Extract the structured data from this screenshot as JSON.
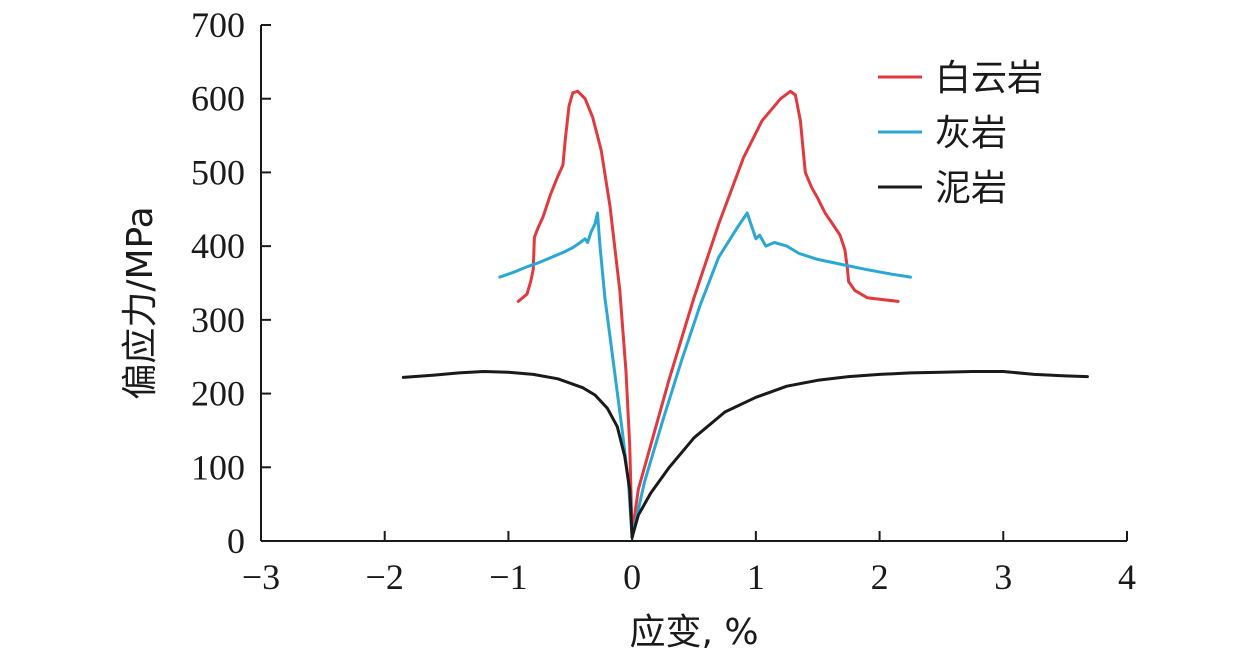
{
  "chart_data": {
    "type": "line",
    "xlabel": "应变, %",
    "ylabel": "偏应力/MPa",
    "xlim": [
      -3,
      4
    ],
    "ylim": [
      0,
      700
    ],
    "xticks": [
      -3,
      -2,
      -1,
      0,
      1,
      2,
      3,
      4
    ],
    "xtick_labels": [
      "−3",
      "−2",
      "−1",
      "0",
      "1",
      "2",
      "3",
      "4"
    ],
    "yticks": [
      0,
      100,
      200,
      300,
      400,
      500,
      600,
      700
    ],
    "ytick_labels": [
      "0",
      "100",
      "200",
      "300",
      "400",
      "500",
      "600",
      "700"
    ],
    "grid": false,
    "legend_position": "top-right",
    "series": [
      {
        "name": "白云岩",
        "color": "#e0393e",
        "x": [
          -0.92,
          -0.85,
          -0.82,
          -0.8,
          -0.79,
          -0.76,
          -0.72,
          -0.66,
          -0.6,
          -0.56,
          -0.54,
          -0.51,
          -0.48,
          -0.44,
          -0.38,
          -0.32,
          -0.25,
          -0.18,
          -0.1,
          -0.05,
          -0.02,
          0
        ],
        "y": [
          325,
          335,
          352,
          368,
          412,
          425,
          440,
          470,
          495,
          510,
          545,
          590,
          608,
          610,
          600,
          575,
          530,
          455,
          340,
          230,
          130,
          10
        ],
        "x2": [
          0,
          0.05,
          0.15,
          0.3,
          0.5,
          0.7,
          0.9,
          1.05,
          1.2,
          1.28,
          1.32,
          1.36,
          1.4,
          1.45,
          1.5,
          1.56,
          1.62,
          1.68,
          1.72,
          1.74,
          1.75,
          1.8,
          1.9,
          2.0,
          2.15
        ],
        "y2": [
          10,
          70,
          130,
          220,
          330,
          430,
          520,
          570,
          600,
          610,
          605,
          570,
          500,
          480,
          465,
          445,
          430,
          415,
          395,
          370,
          352,
          340,
          330,
          328,
          325
        ]
      },
      {
        "name": "灰岩",
        "color": "#2ba7d4",
        "x": [
          -1.07,
          -0.95,
          -0.85,
          -0.75,
          -0.65,
          -0.55,
          -0.48,
          -0.42,
          -0.38,
          -0.36,
          -0.33,
          -0.3,
          -0.28,
          -0.26,
          -0.22,
          -0.15,
          -0.08,
          -0.03,
          0
        ],
        "y": [
          358,
          365,
          372,
          378,
          385,
          392,
          398,
          405,
          410,
          405,
          420,
          430,
          445,
          400,
          330,
          240,
          150,
          80,
          5
        ],
        "x2": [
          0,
          0.1,
          0.25,
          0.4,
          0.55,
          0.7,
          0.85,
          0.93,
          0.96,
          1.0,
          1.03,
          1.08,
          1.15,
          1.25,
          1.35,
          1.5,
          1.7,
          1.9,
          2.1,
          2.25
        ],
        "y2": [
          5,
          80,
          165,
          245,
          320,
          385,
          425,
          445,
          430,
          410,
          415,
          400,
          405,
          400,
          390,
          382,
          375,
          368,
          362,
          358
        ]
      },
      {
        "name": "泥岩",
        "color": "#1a1a1a",
        "x": [
          -1.85,
          -1.6,
          -1.4,
          -1.2,
          -1.0,
          -0.8,
          -0.6,
          -0.4,
          -0.3,
          -0.2,
          -0.12,
          -0.06,
          -0.02,
          0
        ],
        "y": [
          222,
          225,
          228,
          230,
          229,
          226,
          220,
          208,
          198,
          180,
          155,
          115,
          70,
          5
        ],
        "x2": [
          0,
          0.05,
          0.15,
          0.3,
          0.5,
          0.75,
          1.0,
          1.25,
          1.5,
          1.75,
          2.0,
          2.25,
          2.5,
          2.75,
          3.0,
          3.25,
          3.5,
          3.68
        ],
        "y2": [
          5,
          35,
          65,
          100,
          140,
          175,
          195,
          210,
          218,
          223,
          226,
          228,
          229,
          230,
          230,
          226,
          224,
          223
        ]
      }
    ]
  }
}
